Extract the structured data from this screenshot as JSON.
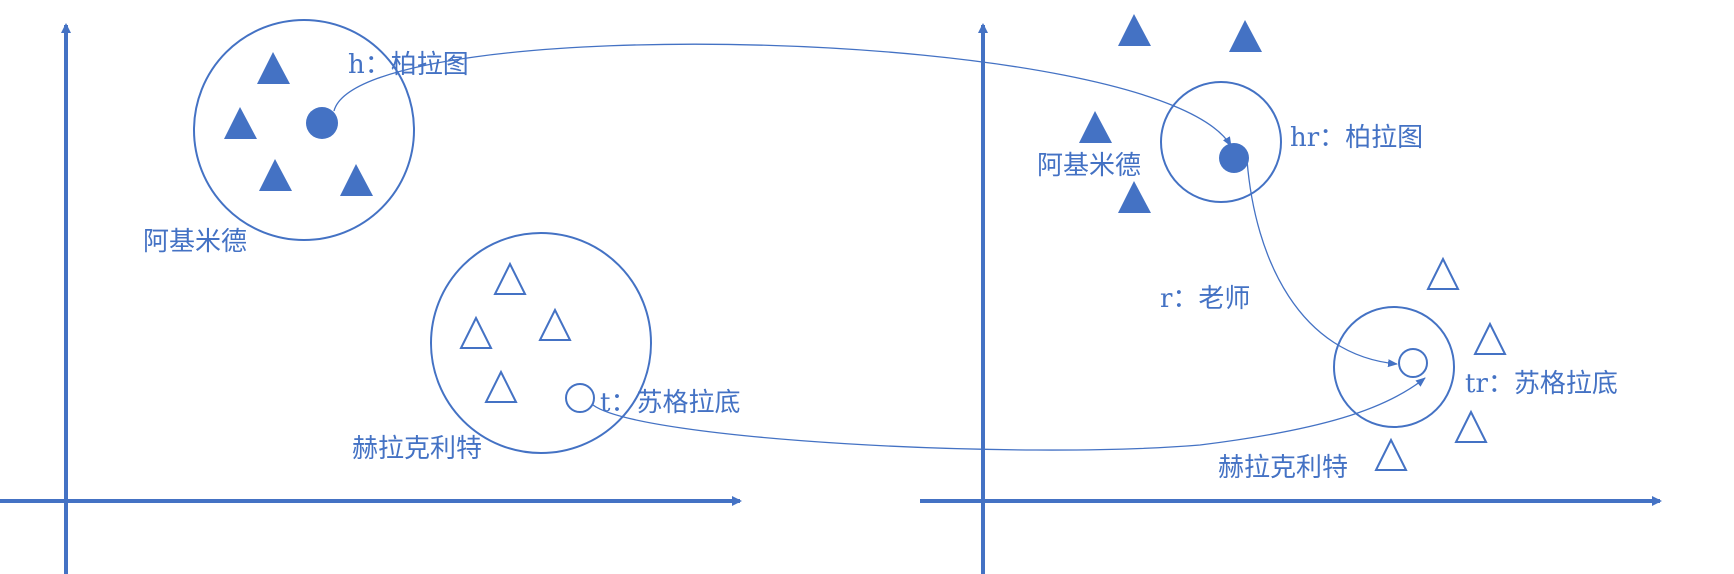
{
  "colors": {
    "primary": "#4472C4",
    "background": "#FFFFFF"
  },
  "left_panel": {
    "h_label": "h：柏拉图",
    "group_a_label": "阿基米德",
    "t_label": "t：苏格拉底",
    "group_b_label": "赫拉克利特"
  },
  "right_panel": {
    "hr_label": "hr：柏拉图",
    "group_a_label": "阿基米德",
    "relation_label": "r：老师",
    "tr_label": "tr：苏格拉底",
    "group_b_label": "赫拉克利特"
  }
}
